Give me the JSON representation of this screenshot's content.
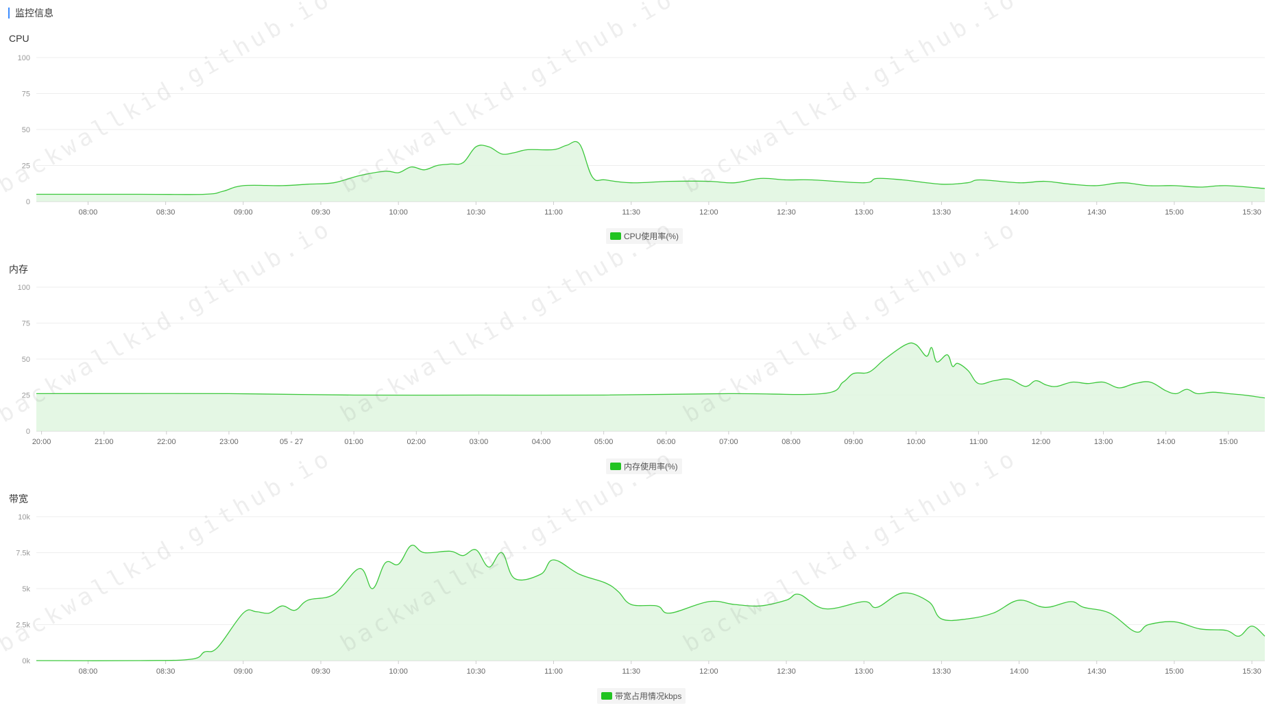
{
  "header": {
    "title": "监控信息"
  },
  "watermark_text": "backwallkid.github.io",
  "colors": {
    "line": "#3cc83c",
    "fill": "#dff6df",
    "grid": "#eeeeee",
    "accent": "#3b8cff",
    "legend": "#22c322"
  },
  "chart_data": [
    {
      "type": "area",
      "title": "CPU",
      "legend": "CPU使用率(%)",
      "ylim": [
        0,
        100
      ],
      "y_ticks": [
        "0",
        "25",
        "50",
        "75",
        "100"
      ],
      "x_ticks": [
        "08:00",
        "08:30",
        "09:00",
        "09:30",
        "10:00",
        "10:30",
        "11:00",
        "11:30",
        "12:00",
        "12:30",
        "13:00",
        "13:30",
        "14:00",
        "14:30",
        "15:00",
        "15:30"
      ],
      "x_range": [
        "07:40",
        "15:35"
      ],
      "series": [
        {
          "x": [
            "07:40",
            "08:20",
            "08:45",
            "08:52",
            "09:00",
            "09:15",
            "09:25",
            "09:35",
            "09:45",
            "09:55",
            "10:00",
            "10:05",
            "10:10",
            "10:15",
            "10:20",
            "10:25",
            "10:30",
            "10:35",
            "10:40",
            "10:45",
            "10:50",
            "11:00",
            "11:05",
            "11:10",
            "11:15",
            "11:20",
            "11:30",
            "11:45",
            "12:00",
            "12:10",
            "12:20",
            "12:30",
            "12:40",
            "13:00",
            "13:05",
            "13:15",
            "13:30",
            "13:40",
            "13:45",
            "14:00",
            "14:10",
            "14:20",
            "14:30",
            "14:40",
            "14:50",
            "15:00",
            "15:10",
            "15:20",
            "15:35"
          ],
          "values": [
            5,
            5,
            5,
            7,
            11,
            11,
            12,
            13,
            18,
            21,
            20,
            24,
            22,
            25,
            26,
            27,
            38,
            38,
            33,
            34,
            36,
            36,
            39,
            40,
            17,
            15,
            13,
            14,
            14,
            13,
            16,
            15,
            15,
            13,
            16,
            15,
            12,
            13,
            15,
            13,
            14,
            12,
            11,
            13,
            11,
            11,
            10,
            11,
            9
          ]
        }
      ]
    },
    {
      "type": "area",
      "title": "内存",
      "legend": "内存使用率(%)",
      "ylim": [
        0,
        100
      ],
      "y_ticks": [
        "0",
        "25",
        "50",
        "75",
        "100"
      ],
      "x_ticks": [
        "20:00",
        "21:00",
        "22:00",
        "23:00",
        "05 - 27",
        "01:00",
        "02:00",
        "03:00",
        "04:00",
        "05:00",
        "06:00",
        "07:00",
        "08:00",
        "09:00",
        "10:00",
        "11:00",
        "12:00",
        "13:00",
        "14:00",
        "15:00"
      ],
      "x_range": [
        "19:55",
        "15:35"
      ],
      "series": [
        {
          "x": [
            "19:55",
            "23:00",
            "01:00",
            "03:00",
            "05:00",
            "07:00",
            "08:30",
            "08:50",
            "09:00",
            "09:15",
            "09:30",
            "09:50",
            "10:00",
            "10:10",
            "10:15",
            "10:20",
            "10:30",
            "10:35",
            "10:40",
            "10:50",
            "11:00",
            "11:15",
            "11:30",
            "11:45",
            "11:55",
            "12:05",
            "12:15",
            "12:30",
            "12:45",
            "13:00",
            "13:15",
            "13:30",
            "13:45",
            "14:00",
            "14:10",
            "14:20",
            "14:30",
            "14:45",
            "15:00",
            "15:15",
            "15:35"
          ],
          "values": [
            26,
            26,
            25,
            25,
            25,
            26,
            26,
            34,
            40,
            41,
            50,
            60,
            60,
            52,
            58,
            48,
            53,
            45,
            47,
            42,
            33,
            35,
            36,
            31,
            35,
            32,
            31,
            34,
            33,
            34,
            30,
            33,
            34,
            28,
            26,
            29,
            26,
            27,
            26,
            25,
            23
          ]
        }
      ]
    },
    {
      "type": "area",
      "title": "带宽",
      "legend": "带宽占用情况kbps",
      "ylim": [
        0,
        10000
      ],
      "y_ticks": [
        "0k",
        "2.5k",
        "5k",
        "7.5k",
        "10k"
      ],
      "x_ticks": [
        "08:00",
        "08:30",
        "09:00",
        "09:30",
        "10:00",
        "10:30",
        "11:00",
        "11:30",
        "12:00",
        "12:30",
        "13:00",
        "13:30",
        "14:00",
        "14:30",
        "15:00",
        "15:30"
      ],
      "x_range": [
        "07:40",
        "15:35"
      ],
      "series": [
        {
          "x": [
            "07:40",
            "08:20",
            "08:40",
            "08:45",
            "08:50",
            "09:00",
            "09:05",
            "09:10",
            "09:15",
            "09:20",
            "09:25",
            "09:35",
            "09:45",
            "09:50",
            "09:55",
            "10:00",
            "10:05",
            "10:10",
            "10:20",
            "10:25",
            "10:30",
            "10:35",
            "10:40",
            "10:45",
            "10:55",
            "11:00",
            "11:10",
            "11:20",
            "11:25",
            "11:30",
            "11:40",
            "11:45",
            "12:00",
            "12:10",
            "12:20",
            "12:30",
            "12:35",
            "12:45",
            "13:00",
            "13:05",
            "13:15",
            "13:25",
            "13:30",
            "13:40",
            "13:50",
            "14:00",
            "14:10",
            "14:20",
            "14:25",
            "14:35",
            "14:45",
            "14:50",
            "15:00",
            "15:10",
            "15:20",
            "15:25",
            "15:30",
            "15:35"
          ],
          "values": [
            0,
            0,
            100,
            600,
            900,
            3300,
            3400,
            3300,
            3800,
            3500,
            4200,
            4600,
            6400,
            5000,
            6800,
            6700,
            8000,
            7500,
            7600,
            7300,
            7700,
            6500,
            7500,
            5700,
            6000,
            7000,
            6000,
            5400,
            4800,
            3900,
            3800,
            3300,
            4100,
            3900,
            3800,
            4200,
            4600,
            3600,
            4100,
            3700,
            4700,
            4100,
            2900,
            2900,
            3300,
            4200,
            3700,
            4100,
            3700,
            3300,
            2000,
            2500,
            2700,
            2200,
            2100,
            1700,
            2400,
            1700
          ]
        }
      ]
    }
  ]
}
